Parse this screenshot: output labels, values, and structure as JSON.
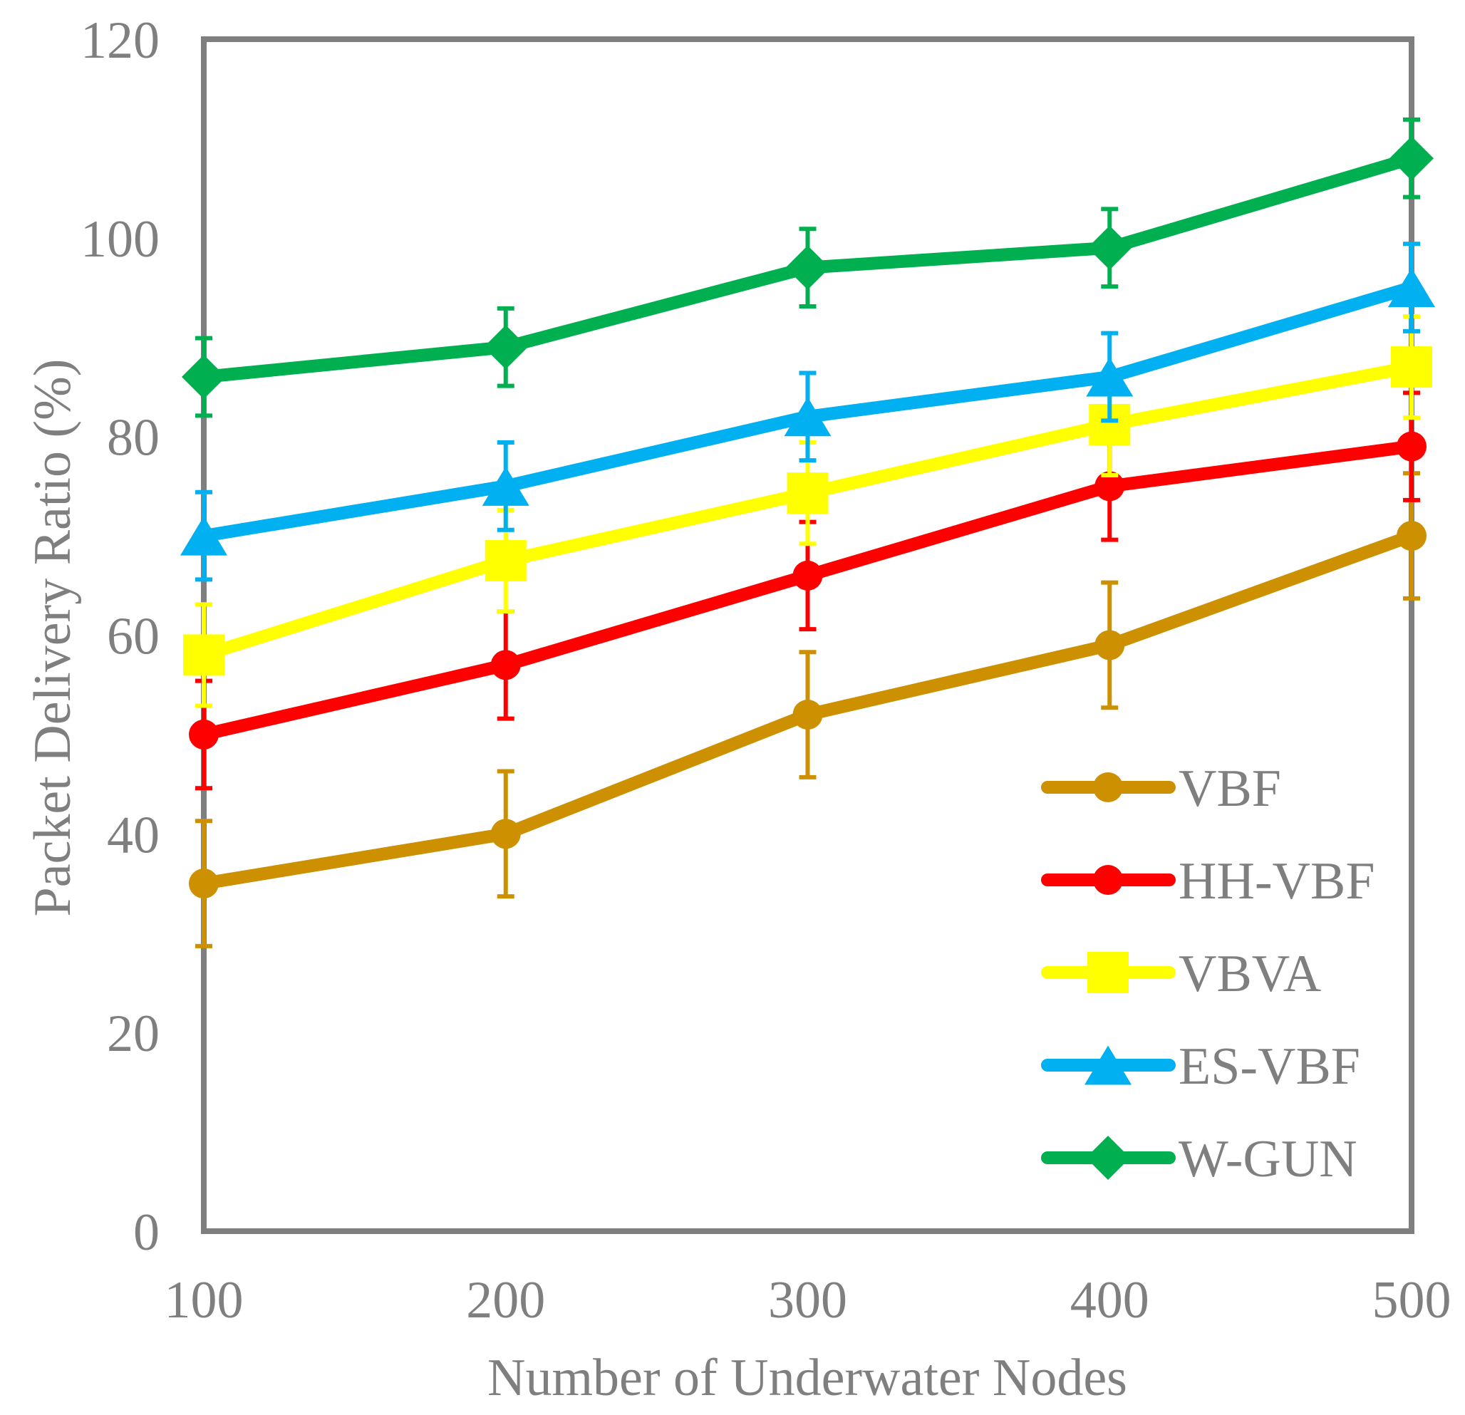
{
  "chart_data": {
    "type": "line",
    "title": "",
    "xlabel": "Number of Underwater Nodes",
    "ylabel": "Packet Delivery Ratio (%)",
    "x": [
      100,
      200,
      300,
      400,
      500
    ],
    "xlim": [
      100,
      500
    ],
    "ylim": [
      0,
      120
    ],
    "yticks": [
      0,
      20,
      40,
      60,
      80,
      100,
      120
    ],
    "grid": false,
    "legend_position": "lower-right",
    "series": [
      {
        "name": "VBF",
        "color": "#CC9000",
        "marker": "circle",
        "values": [
          35,
          40,
          52,
          59,
          70
        ],
        "error": [
          6.3,
          6.3,
          6.3,
          6.3,
          6.3
        ]
      },
      {
        "name": "HH-VBF",
        "color": "#FF0000",
        "marker": "circle",
        "values": [
          50,
          57,
          66,
          75,
          79
        ],
        "error": [
          5.4,
          5.4,
          5.4,
          5.4,
          5.4
        ]
      },
      {
        "name": "VBVA",
        "color": "#FFFF00",
        "marker": "square",
        "values": [
          58,
          67.5,
          74.3,
          81.2,
          87
        ],
        "error": [
          5.1,
          5.1,
          5.1,
          5.1,
          5.1
        ]
      },
      {
        "name": "ES-VBF",
        "color": "#00B0F0",
        "marker": "triangle",
        "values": [
          70,
          75,
          82,
          86,
          95
        ],
        "error": [
          4.4,
          4.4,
          4.4,
          4.4,
          4.4
        ]
      },
      {
        "name": "W-GUN",
        "color": "#00B050",
        "marker": "diamond",
        "values": [
          86,
          89,
          97,
          99,
          108
        ],
        "error": [
          3.9,
          3.9,
          3.9,
          3.9,
          3.9
        ]
      }
    ]
  },
  "style": {
    "text_color": "#7F7F7F",
    "axis_color": "#7F7F7F",
    "background": "#FFFFFF"
  }
}
